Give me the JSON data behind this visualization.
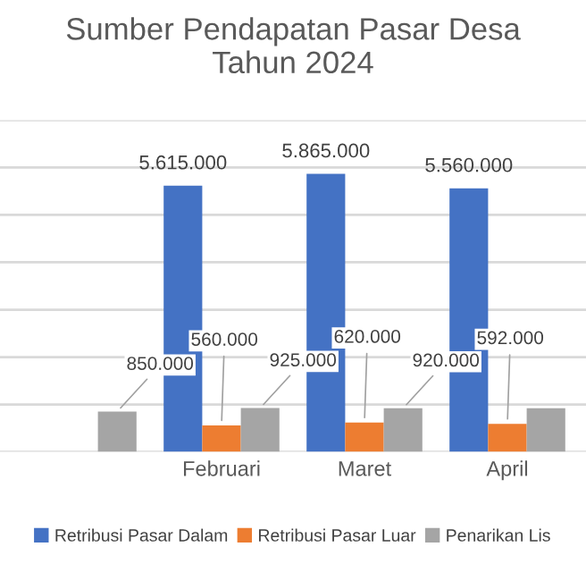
{
  "chart_data": {
    "type": "bar",
    "title": "Sumber Pendapatan Pasar Desa\nTahun 2024",
    "categories": [
      null,
      "Februari",
      "Maret",
      "April"
    ],
    "series": [
      {
        "name": "Retribusi Pasar Dalam",
        "color": "#4472c4",
        "values": [
          null,
          5615000,
          5865000,
          5560000
        ],
        "value_labels": [
          null,
          "5.615.000",
          "5.865.000",
          "5.560.000"
        ]
      },
      {
        "name": "Retribusi Pasar Luar",
        "color": "#ed7d31",
        "values": [
          null,
          560000,
          620000,
          592000
        ],
        "value_labels": [
          null,
          "560.000",
          "620.000",
          "592.000"
        ]
      },
      {
        "name": "Penarikan Lis",
        "color": "#a5a5a5",
        "values": [
          850000,
          925000,
          920000,
          920000
        ],
        "value_labels": [
          "850.000",
          "925.000",
          "920.000",
          null
        ]
      }
    ],
    "ylim": [
      0,
      7000000
    ],
    "yticks": [
      {
        "value": 0,
        "label": null
      },
      {
        "value": 1000000,
        "label": null
      },
      {
        "value": 2000000,
        "label": null
      },
      {
        "value": 3000000,
        "label": null
      },
      {
        "value": 4000000,
        "label": null
      },
      {
        "value": 5000000,
        "label": null
      },
      {
        "value": 6000000,
        "label": null
      },
      {
        "value": 7000000,
        "label": null
      }
    ],
    "grid": "y",
    "legend": "bottom",
    "tick_labels": "x"
  }
}
